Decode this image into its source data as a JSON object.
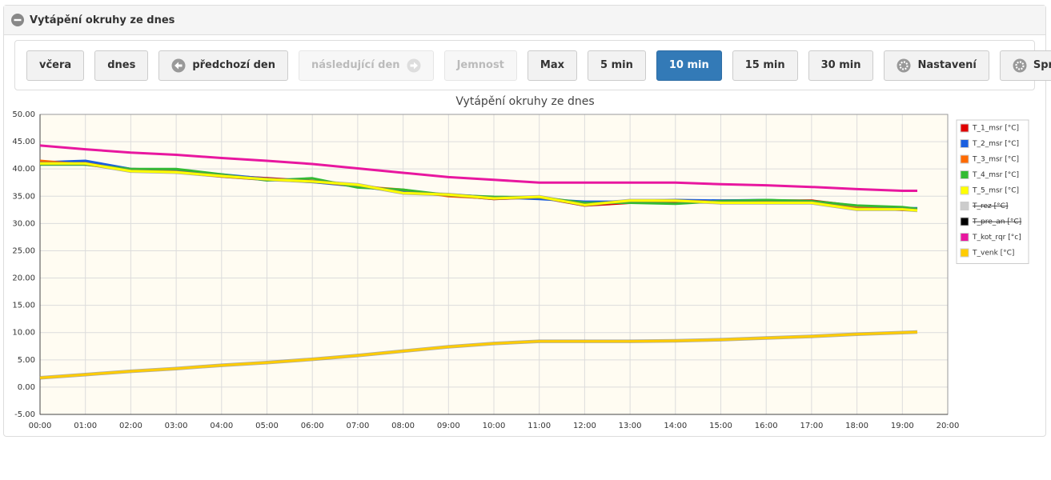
{
  "panel": {
    "title": "Vytápění okruhy ze dnes"
  },
  "toolbar": {
    "buttons": [
      {
        "label": "včera"
      },
      {
        "label": "dnes"
      },
      {
        "label": "předchozí den",
        "icon": "arrow-left"
      },
      {
        "label": "následující den",
        "icon": "arrow-right",
        "disabled": true
      },
      {
        "label": "Jemnost",
        "disabled": true
      },
      {
        "label": "Max"
      },
      {
        "label": "5 min"
      },
      {
        "label": "10 min",
        "active": true
      },
      {
        "label": "15 min"
      },
      {
        "label": "30 min"
      },
      {
        "label": "Nastavení",
        "icon": "gear"
      },
      {
        "label": "Správa průběhů",
        "icon": "gear"
      }
    ]
  },
  "chart_data": {
    "type": "line",
    "title": "Vytápění okruhy ze dnes",
    "grid": true,
    "legend": "right",
    "x": [
      0,
      1,
      2,
      3,
      4,
      5,
      6,
      7,
      8,
      9,
      10,
      11,
      12,
      13,
      14,
      15,
      16,
      17,
      18,
      19,
      19.33
    ],
    "xlim": [
      0,
      20
    ],
    "xticks": [
      {
        "value": 0,
        "label": "00:00"
      },
      {
        "value": 1,
        "label": "01:00"
      },
      {
        "value": 2,
        "label": "02:00"
      },
      {
        "value": 3,
        "label": "03:00"
      },
      {
        "value": 4,
        "label": "04:00"
      },
      {
        "value": 5,
        "label": "05:00"
      },
      {
        "value": 6,
        "label": "06:00"
      },
      {
        "value": 7,
        "label": "07:00"
      },
      {
        "value": 8,
        "label": "08:00"
      },
      {
        "value": 9,
        "label": "09:00"
      },
      {
        "value": 10,
        "label": "10:00"
      },
      {
        "value": 11,
        "label": "11:00"
      },
      {
        "value": 12,
        "label": "12:00"
      },
      {
        "value": 13,
        "label": "13:00"
      },
      {
        "value": 14,
        "label": "14:00"
      },
      {
        "value": 15,
        "label": "15:00"
      },
      {
        "value": 16,
        "label": "16:00"
      },
      {
        "value": 17,
        "label": "17:00"
      },
      {
        "value": 18,
        "label": "18:00"
      },
      {
        "value": 19,
        "label": "19:00"
      },
      {
        "value": 20,
        "label": "20:00"
      }
    ],
    "ylim": [
      -5,
      50
    ],
    "yticks": [
      {
        "value": -5,
        "label": "-5.00"
      },
      {
        "value": 0,
        "label": "0.00"
      },
      {
        "value": 5,
        "label": "5.00"
      },
      {
        "value": 10,
        "label": "10.00"
      },
      {
        "value": 15,
        "label": "15.00"
      },
      {
        "value": 20,
        "label": "20.00"
      },
      {
        "value": 25,
        "label": "25.00"
      },
      {
        "value": 30,
        "label": "30.00"
      },
      {
        "value": 35,
        "label": "35.00"
      },
      {
        "value": 40,
        "label": "40.00"
      },
      {
        "value": 45,
        "label": "45.00"
      },
      {
        "value": 50,
        "label": "50.00"
      }
    ],
    "series": [
      {
        "name": "T_1_msr [°C]",
        "color": "#e00000",
        "values": [
          41.3,
          41.2,
          40.0,
          39.8,
          38.8,
          38.3,
          37.8,
          37.0,
          35.8,
          35.2,
          34.5,
          34.8,
          33.3,
          33.8,
          34.0,
          34.2,
          34.2,
          34.2,
          33.2,
          32.5,
          32.5
        ]
      },
      {
        "name": "T_2_msr [°C]",
        "color": "#1a5fe0",
        "values": [
          41.2,
          41.5,
          40.0,
          39.7,
          39.0,
          38.2,
          37.6,
          36.8,
          35.8,
          35.3,
          34.8,
          34.5,
          34.0,
          34.0,
          34.3,
          34.2,
          34.3,
          34.0,
          33.0,
          32.8,
          32.8
        ]
      },
      {
        "name": "T_3_msr [°C]",
        "color": "#ff6a00",
        "values": [
          41.5,
          40.8,
          39.8,
          39.5,
          38.6,
          38.0,
          37.8,
          36.8,
          36.2,
          35.0,
          34.6,
          34.8,
          33.6,
          34.0,
          34.1,
          34.0,
          34.1,
          34.0,
          33.1,
          32.6,
          32.6
        ]
      },
      {
        "name": "T_4_msr [°C]",
        "color": "#33bb33",
        "values": [
          40.8,
          40.8,
          40.0,
          40.0,
          39.0,
          37.9,
          38.3,
          36.6,
          36.2,
          35.2,
          34.9,
          34.8,
          33.8,
          33.8,
          33.6,
          34.1,
          34.3,
          34.1,
          33.3,
          33.0,
          32.7
        ]
      },
      {
        "name": "T_5_msr [°C]",
        "color": "#ffff00",
        "values": [
          41.0,
          41.0,
          39.6,
          39.4,
          38.7,
          38.1,
          37.7,
          37.1,
          35.6,
          35.3,
          34.6,
          34.9,
          33.4,
          34.2,
          34.2,
          33.8,
          33.8,
          33.8,
          32.6,
          32.6,
          32.4
        ]
      },
      {
        "name": "T_rez [°C]",
        "color": "#cccccc",
        "visible": false
      },
      {
        "name": "T_pre_an [°C]",
        "color": "#000000",
        "visible": false
      },
      {
        "name": "T_kot_rqr [°c]",
        "color": "#e8179f",
        "values": [
          44.3,
          43.6,
          43.0,
          42.6,
          42.0,
          41.5,
          40.9,
          40.1,
          39.3,
          38.5,
          38.0,
          37.5,
          37.5,
          37.5,
          37.5,
          37.2,
          37.0,
          36.7,
          36.3,
          36.0,
          36.0
        ]
      },
      {
        "name": "T_venk [°C]",
        "color": "#ffcc00",
        "values": [
          1.7,
          2.3,
          2.9,
          3.4,
          4.0,
          4.5,
          5.1,
          5.8,
          6.6,
          7.4,
          8.0,
          8.4,
          8.4,
          8.4,
          8.5,
          8.7,
          9.0,
          9.3,
          9.7,
          10.0,
          10.1
        ]
      }
    ]
  }
}
